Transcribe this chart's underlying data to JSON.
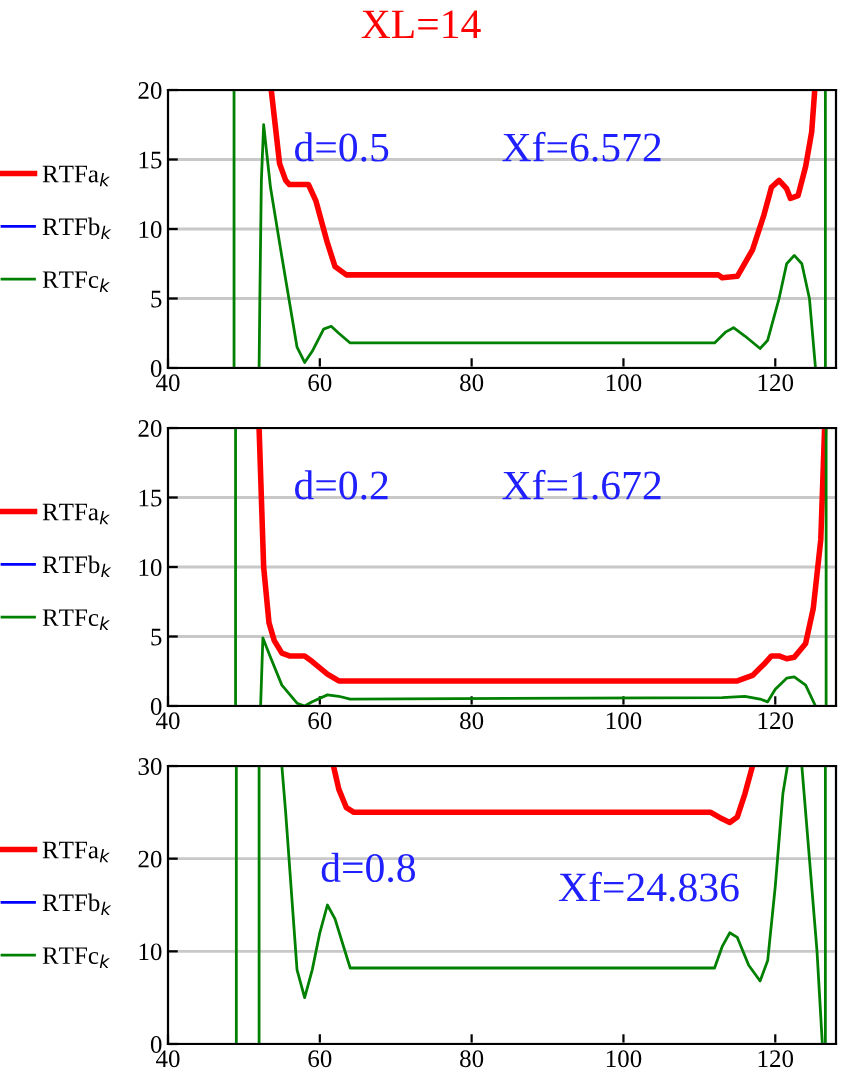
{
  "chart_data": [
    {
      "type": "line",
      "title": "XL=14",
      "annotations": [
        "d=0.5",
        "Xf=6.572"
      ],
      "xlim": [
        40,
        128
      ],
      "xticks": [
        40,
        60,
        80,
        100,
        120
      ],
      "ylim": [
        0,
        20
      ],
      "yticks": [
        0,
        5,
        10,
        15,
        20
      ],
      "grid": "y",
      "legend": "left",
      "series": [
        {
          "name": "RTFa$_{k}$",
          "color": "#ff0000",
          "x": [
            53.6,
            54.7,
            55.5,
            56,
            58.5,
            59.5,
            61,
            62,
            63.5,
            112.5,
            113,
            115,
            117,
            118.5,
            119.5,
            120.5,
            121.5,
            122,
            123,
            124,
            124.8,
            125.2
          ],
          "values": [
            20,
            14.7,
            13.5,
            13.2,
            13.2,
            12,
            9,
            7.3,
            6.7,
            6.7,
            6.5,
            6.6,
            8.5,
            11,
            13,
            13.5,
            12.9,
            12.2,
            12.4,
            14.5,
            17,
            20
          ]
        },
        {
          "name": "RTFb$_{k}$",
          "color": "#0000ff"
        },
        {
          "name": "RTFc$_{k}$",
          "color": "#008000",
          "x": [
            48.7,
            48.7,
            50,
            52,
            52.1,
            52.3,
            52.6,
            53.5,
            55,
            57,
            58,
            59,
            60.5,
            61.5,
            62.5,
            64,
            112,
            113.5,
            114.5,
            116,
            118,
            119,
            120.5,
            121.5,
            122.5,
            123.5,
            124.5,
            125.3,
            126,
            126.6,
            126.6
          ],
          "values": [
            0,
            20,
            null,
            0,
            5,
            13.5,
            17.5,
            13,
            8,
            1.5,
            0.4,
            1.2,
            2.8,
            3.0,
            2.5,
            1.8,
            1.8,
            2.6,
            2.9,
            2.3,
            1.4,
            2,
            5,
            7.5,
            8.1,
            7.5,
            5,
            0,
            null,
            0,
            20
          ]
        }
      ]
    },
    {
      "type": "line",
      "annotations": [
        "d=0.2",
        "Xf=1.672"
      ],
      "xlim": [
        40,
        128
      ],
      "xticks": [
        40,
        60,
        80,
        100,
        120
      ],
      "ylim": [
        0,
        20
      ],
      "yticks": [
        0,
        5,
        10,
        15,
        20
      ],
      "grid": "y",
      "legend": "left",
      "series": [
        {
          "name": "RTFa$_{k}$",
          "color": "#ff0000",
          "x": [
            52,
            52.3,
            52.6,
            53.3,
            54,
            55,
            56,
            58,
            59,
            61,
            62.5,
            115,
            117,
            118.5,
            119.5,
            120.5,
            121.5,
            122.5,
            124,
            125,
            126,
            126.5
          ],
          "values": [
            20,
            15,
            10,
            6,
            4.7,
            3.8,
            3.6,
            3.6,
            3.2,
            2.3,
            1.8,
            1.8,
            2.2,
            3.0,
            3.6,
            3.6,
            3.4,
            3.5,
            4.5,
            7,
            12,
            20
          ]
        },
        {
          "name": "RTFb$_{k}$",
          "color": "#0000ff"
        },
        {
          "name": "RTFc$_{k}$",
          "color": "#008000",
          "x": [
            48.9,
            48.9,
            50,
            52.2,
            52.5,
            53.5,
            55,
            57,
            58,
            59,
            61,
            62.5,
            64,
            113,
            116,
            118,
            119,
            120,
            121.5,
            122.5,
            124,
            125.3,
            126,
            126.7,
            126.7
          ],
          "values": [
            0,
            20,
            null,
            0,
            4.9,
            3.5,
            1.5,
            0.2,
            0,
            0.3,
            0.8,
            0.7,
            0.5,
            0.6,
            0.7,
            0.5,
            0.3,
            1.2,
            2.0,
            2.1,
            1.5,
            0,
            null,
            0,
            20
          ]
        }
      ]
    },
    {
      "type": "line",
      "annotations": [
        "d=0.8",
        "Xf=24.836"
      ],
      "xlim": [
        40,
        128
      ],
      "xticks": [
        40,
        60,
        80,
        100,
        120
      ],
      "ylim": [
        0,
        30
      ],
      "yticks": [
        0,
        10,
        20,
        30
      ],
      "grid": "y",
      "legend": "left",
      "series": [
        {
          "name": "RTFa$_{k}$",
          "color": "#ff0000",
          "x": [
            61.8,
            62.5,
            63.5,
            64.5,
            111.5,
            113,
            114,
            115,
            116,
            117
          ],
          "values": [
            30,
            27.5,
            25.5,
            25,
            25,
            24.3,
            23.9,
            24.5,
            27,
            30
          ]
        },
        {
          "name": "RTFb$_{k}$",
          "color": "#0000ff"
        },
        {
          "name": "RTFc$_{k}$",
          "color": "#008000",
          "x": [
            49,
            49,
            50,
            52,
            52,
            53,
            55,
            55.5,
            57,
            58,
            59,
            60,
            61,
            62,
            64,
            112,
            113,
            114,
            115,
            116.5,
            118,
            119,
            120,
            121,
            121.6,
            122.5,
            123.5,
            124.5,
            125.5,
            126.2,
            126.4,
            126.6,
            126.6
          ],
          "values": [
            0,
            30,
            null,
            0,
            30,
            null,
            30,
            25,
            8,
            5,
            8,
            12,
            15,
            13.5,
            8.2,
            8.2,
            10.5,
            12,
            11.5,
            8.5,
            6.8,
            9,
            17,
            27,
            30,
            null,
            30,
            20,
            10,
            0,
            null,
            0,
            30
          ]
        }
      ]
    }
  ]
}
